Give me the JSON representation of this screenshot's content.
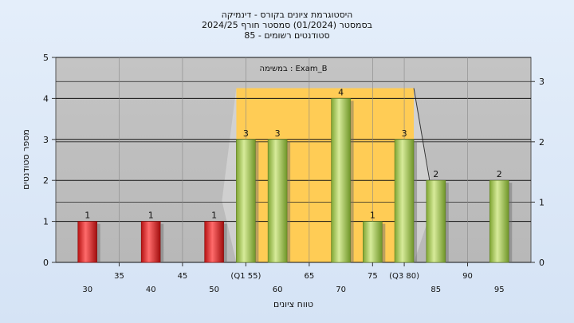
{
  "chart_data": {
    "type": "bar",
    "title_lines": [
      "היסטוגרמת ציונים בקורס - דינמיקה",
      "בסמסטר  (01/2024)  סמסטר חורף 2024/25",
      "סטודנטים רשומים - 85"
    ],
    "annotation": "במשימה : Exam_B",
    "ylabel": "מספר סטודנטים",
    "xlabel": "טווח ציונים",
    "ylim": [
      0,
      5
    ],
    "y_ticks": [
      "0",
      "1",
      "2",
      "3",
      "4",
      "5"
    ],
    "y2lim": [
      0,
      3.4
    ],
    "y2_ticks": [
      "0",
      "1",
      "2",
      "3"
    ],
    "x_range": [
      25,
      100
    ],
    "x_ticks_lower": [
      {
        "x": 30,
        "label": "30"
      },
      {
        "x": 40,
        "label": "40"
      },
      {
        "x": 50,
        "label": "50"
      },
      {
        "x": 60,
        "label": "60"
      },
      {
        "x": 70,
        "label": "70"
      },
      {
        "x": 85,
        "label": "85"
      },
      {
        "x": 95,
        "label": "95"
      }
    ],
    "x_ticks_upper": [
      {
        "x": 35,
        "label": "35"
      },
      {
        "x": 45,
        "label": "45"
      },
      {
        "x": 55,
        "label": "(Q1 55)"
      },
      {
        "x": 65,
        "label": "65"
      },
      {
        "x": 75,
        "label": "75"
      },
      {
        "x": 80,
        "label": "(Q3 80)"
      },
      {
        "x": 90,
        "label": "90"
      }
    ],
    "bars": [
      {
        "x": 30,
        "value": 1,
        "color": "red"
      },
      {
        "x": 40,
        "value": 1,
        "color": "red"
      },
      {
        "x": 50,
        "value": 1,
        "color": "red"
      },
      {
        "x": 55,
        "value": 3,
        "color": "green"
      },
      {
        "x": 60,
        "value": 3,
        "color": "green"
      },
      {
        "x": 70,
        "value": 4,
        "color": "green"
      },
      {
        "x": 75,
        "value": 1,
        "color": "green"
      },
      {
        "x": 80,
        "value": 3,
        "color": "green"
      },
      {
        "x": 85,
        "value": 2,
        "color": "green"
      },
      {
        "x": 95,
        "value": 2,
        "color": "green"
      }
    ],
    "iqr_band": {
      "x_start": 55,
      "x_end": 80,
      "y_top": 4.25
    },
    "colors": {
      "plot_bg": "#c0c0c0",
      "iqr_band": "#ffcc55",
      "bar_red": "#d42020",
      "bar_green": "#9cc04a",
      "page_bg": "#dde8f6"
    },
    "grid": true,
    "legend": "none"
  }
}
